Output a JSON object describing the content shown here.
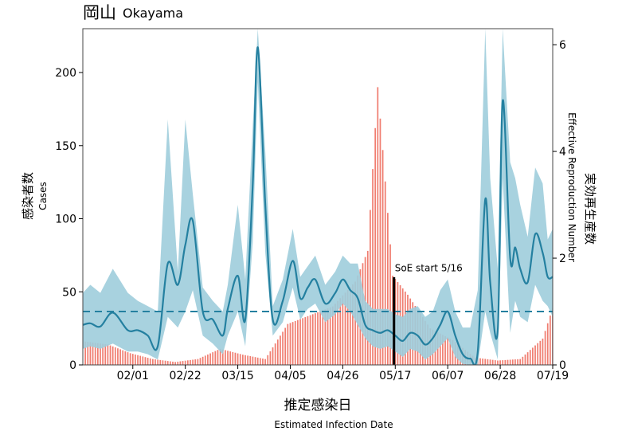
{
  "header": {
    "title_jp": "岡山",
    "title_en": "Okayama"
  },
  "chart_data": {
    "type": "bar",
    "title": "岡山 Okayama",
    "xlabel_jp": "推定感染日",
    "xlabel_en": "Estimated Infection Date",
    "ylabel_left_jp": "感染者数",
    "ylabel_left_en": "Cases",
    "ylabel_right_jp": "実効再生産数",
    "ylabel_right_en": "Effective Reproduction Number",
    "x_ticks": [
      "02/01",
      "02/22",
      "03/15",
      "04/05",
      "04/26",
      "05/17",
      "06/07",
      "06/28",
      "07/19"
    ],
    "x_tick_days": [
      20,
      41,
      62,
      83,
      104,
      125,
      146,
      167,
      188
    ],
    "x_range_days": [
      0,
      188
    ],
    "ylim_left": [
      0,
      230
    ],
    "y_ticks_left": [
      0,
      50,
      100,
      150,
      200
    ],
    "ylim_right": [
      0,
      6.3
    ],
    "y_ticks_right": [
      0,
      2,
      4,
      6
    ],
    "reference_line_R": 1.0,
    "annotation": {
      "text": "SoE start 5/16",
      "day": 124.5
    },
    "colors": {
      "bars": "#f07d70",
      "rt_line": "#2480a0",
      "ci_band": "#9fcddc",
      "reference_line": "#2480a0",
      "annotation_line": "#000000"
    },
    "series": [
      {
        "kind": "cases",
        "x_days": [
          1,
          10,
          19,
          28,
          37,
          46,
          55,
          64,
          73,
          82,
          91,
          100,
          109,
          114,
          118,
          124,
          130,
          139,
          148,
          157,
          166,
          175,
          184,
          188
        ],
        "values": [
          16,
          14,
          8,
          4,
          2,
          4,
          11,
          7,
          4,
          28,
          34,
          40,
          57,
          78,
          190,
          61,
          48,
          25,
          17,
          5,
          3,
          4,
          18,
          39
        ]
      },
      {
        "kind": "Rt",
        "x_days": [
          0,
          3,
          7,
          12,
          18,
          22,
          26,
          30,
          34,
          38,
          41,
          44,
          48,
          52,
          56,
          58,
          62,
          65,
          68,
          70,
          73,
          76,
          80,
          84,
          87,
          90,
          93,
          97,
          101,
          104,
          107,
          110,
          113,
          116,
          119,
          122,
          125,
          128,
          131,
          134,
          137,
          140,
          143,
          146,
          149,
          152,
          155,
          158,
          161,
          163,
          166,
          168,
          171,
          173,
          175,
          178,
          181,
          184,
          186,
          188
        ],
        "values": [
          0.75,
          0.78,
          0.72,
          0.98,
          0.65,
          0.65,
          0.55,
          0.35,
          1.9,
          1.5,
          2.25,
          2.7,
          1.0,
          0.85,
          0.55,
          1.05,
          1.67,
          0.85,
          3.4,
          5.95,
          3.0,
          0.85,
          1.2,
          1.95,
          1.25,
          1.45,
          1.6,
          1.15,
          1.35,
          1.6,
          1.4,
          1.25,
          0.75,
          0.65,
          0.6,
          0.65,
          0.55,
          0.45,
          0.6,
          0.55,
          0.38,
          0.5,
          0.75,
          1.0,
          0.55,
          0.2,
          0.12,
          0.25,
          3.1,
          1.55,
          0.65,
          4.95,
          2.0,
          2.2,
          1.8,
          1.55,
          2.45,
          2.1,
          1.65,
          1.65
        ]
      },
      {
        "kind": "Rt_ci_upper",
        "x_days": [
          0,
          3,
          7,
          12,
          18,
          22,
          26,
          30,
          34,
          38,
          41,
          44,
          48,
          52,
          56,
          58,
          62,
          65,
          68,
          70,
          73,
          76,
          80,
          84,
          87,
          90,
          93,
          97,
          101,
          104,
          107,
          110,
          113,
          116,
          119,
          122,
          125,
          128,
          131,
          134,
          137,
          140,
          143,
          146,
          149,
          152,
          155,
          158,
          161,
          163,
          166,
          168,
          171,
          173,
          175,
          178,
          181,
          184,
          186,
          188
        ],
        "values": [
          1.35,
          1.5,
          1.35,
          1.8,
          1.35,
          1.2,
          1.1,
          1.0,
          4.6,
          1.75,
          4.6,
          3.2,
          1.45,
          1.2,
          1.0,
          1.5,
          3.0,
          1.6,
          4.5,
          6.3,
          4.0,
          1.1,
          1.6,
          2.55,
          1.65,
          1.85,
          2.05,
          1.5,
          1.75,
          2.05,
          1.9,
          1.9,
          1.2,
          1.05,
          1.05,
          1.05,
          0.95,
          0.9,
          1.05,
          1.1,
          0.9,
          1.0,
          1.4,
          1.6,
          1.0,
          0.7,
          0.7,
          1.4,
          6.3,
          3.5,
          1.8,
          6.3,
          3.8,
          3.5,
          3.0,
          2.4,
          3.7,
          3.4,
          2.35,
          2.55
        ]
      },
      {
        "kind": "Rt_ci_lower",
        "x_days": [
          0,
          3,
          7,
          12,
          18,
          22,
          26,
          30,
          34,
          38,
          41,
          44,
          48,
          52,
          56,
          58,
          62,
          65,
          68,
          70,
          73,
          76,
          80,
          84,
          87,
          90,
          93,
          97,
          101,
          104,
          107,
          110,
          113,
          116,
          119,
          122,
          125,
          128,
          131,
          134,
          137,
          140,
          143,
          146,
          149,
          152,
          155,
          158,
          161,
          163,
          166,
          168,
          171,
          173,
          175,
          178,
          181,
          184,
          186,
          188
        ],
        "values": [
          0.3,
          0.35,
          0.3,
          0.4,
          0.25,
          0.25,
          0.2,
          0.1,
          0.9,
          0.7,
          1.0,
          1.4,
          0.55,
          0.4,
          0.2,
          0.55,
          1.0,
          0.35,
          2.3,
          5.3,
          2.1,
          0.55,
          0.8,
          1.45,
          0.85,
          1.05,
          1.15,
          0.8,
          0.95,
          1.15,
          1.0,
          0.75,
          0.5,
          0.35,
          0.3,
          0.35,
          0.25,
          0.15,
          0.3,
          0.25,
          0.1,
          0.2,
          0.35,
          0.5,
          0.15,
          0.02,
          0.0,
          0.0,
          1.0,
          0.6,
          0.1,
          3.5,
          0.6,
          1.2,
          0.9,
          0.8,
          1.5,
          1.2,
          1.1,
          0.9
        ]
      }
    ]
  }
}
